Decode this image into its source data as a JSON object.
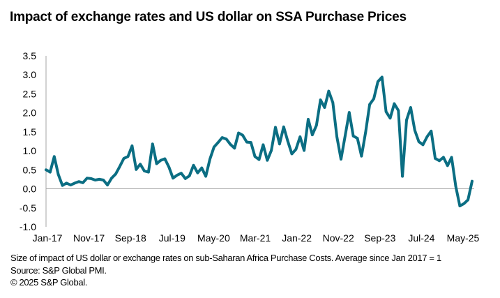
{
  "chart_data": {
    "type": "line",
    "title": "Impact of exchange rates and US dollar on SSA Purchase Prices",
    "xlabel": "",
    "ylabel": "",
    "ylim": [
      -1.0,
      3.5
    ],
    "yticks": [
      "3.5",
      "3.0",
      "2.5",
      "2.0",
      "1.5",
      "1.0",
      "0.5",
      "0.0",
      "-0.5",
      "-1.0"
    ],
    "ytick_values": [
      3.5,
      3.0,
      2.5,
      2.0,
      1.5,
      1.0,
      0.5,
      0.0,
      -0.5,
      -1.0
    ],
    "xtick_labels": [
      "Jan-17",
      "Nov-17",
      "Sep-18",
      "Jul-19",
      "May-20",
      "Mar-21",
      "Jan-22",
      "Nov-22",
      "Sep-23",
      "Jul-24",
      "May-25"
    ],
    "xtick_every_n_months": 10,
    "x_start": "Jan-17",
    "x_end": "Sep-25",
    "grid": false,
    "legend": "none",
    "series": [
      {
        "name": "Size of impact of US dollar or exchange rates on SSA purchase costs",
        "color": "#0b6e83",
        "values": [
          0.5,
          0.44,
          0.85,
          0.38,
          0.09,
          0.15,
          0.1,
          0.15,
          0.19,
          0.16,
          0.28,
          0.27,
          0.23,
          0.25,
          0.23,
          0.1,
          0.28,
          0.39,
          0.59,
          0.8,
          0.85,
          1.13,
          0.51,
          0.65,
          0.47,
          0.44,
          1.18,
          0.66,
          0.75,
          0.79,
          0.57,
          0.28,
          0.36,
          0.41,
          0.27,
          0.34,
          0.62,
          0.42,
          0.55,
          0.33,
          0.78,
          1.1,
          1.22,
          1.35,
          1.31,
          1.17,
          1.07,
          1.47,
          1.41,
          1.23,
          1.22,
          0.85,
          0.77,
          1.16,
          0.75,
          1.01,
          1.62,
          1.18,
          1.63,
          1.26,
          0.92,
          1.04,
          1.37,
          1.01,
          1.83,
          1.42,
          1.67,
          2.34,
          2.14,
          2.57,
          2.27,
          1.37,
          0.78,
          1.39,
          2.01,
          1.39,
          1.33,
          0.86,
          1.49,
          2.22,
          2.37,
          2.82,
          2.94,
          2.03,
          1.86,
          2.24,
          2.06,
          0.33,
          1.81,
          2.14,
          1.54,
          1.24,
          1.16,
          1.37,
          1.52,
          0.8,
          0.74,
          0.83,
          0.61,
          0.83,
          0.07,
          -0.45,
          -0.39,
          -0.29,
          0.2
        ]
      }
    ]
  },
  "footnotes": {
    "description": "Size of impact of US dollar or exchange rates on sub-Saharan Africa Purchase Costs. Average since Jan 2017 = 1",
    "source": "Source: S&P Global PMI.",
    "copyright": "© 2025 S&P Global."
  }
}
